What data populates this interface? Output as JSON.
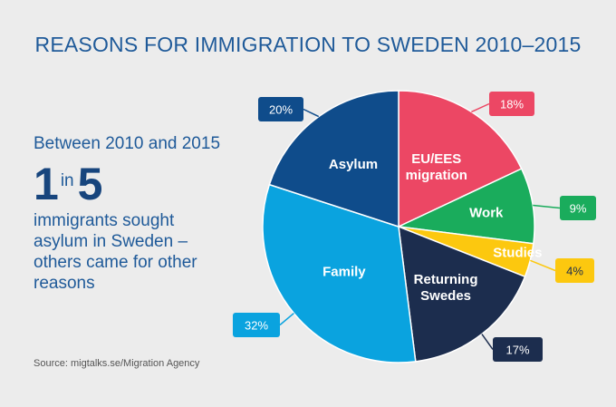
{
  "title": "REASONS FOR IMMIGRATION TO SWEDEN 2010–2015",
  "intro": "Between 2010 and 2015",
  "stat": {
    "num1": "1",
    "word": "in",
    "num2": "5"
  },
  "description": "immigrants sought asylum in Sweden – others came for other reasons",
  "source": "Source: migtalks.se/Migration Agency",
  "chart_data": {
    "type": "pie",
    "start_angle_deg": 0,
    "direction": "clockwise",
    "slices": [
      {
        "label": "EU/EES migration",
        "lines": [
          "EU/EES",
          "migration"
        ],
        "value": 18,
        "value_label": "18%",
        "color": "#ec4764"
      },
      {
        "label": "Work",
        "lines": [
          "Work"
        ],
        "value": 9,
        "value_label": "9%",
        "color": "#1aac5c"
      },
      {
        "label": "Studies",
        "lines": [
          "Studies"
        ],
        "value": 4,
        "value_label": "4%",
        "color": "#fcc80f"
      },
      {
        "label": "Returning Swedes",
        "lines": [
          "Returning",
          "Swedes"
        ],
        "value": 17,
        "value_label": "17%",
        "color": "#1c2d4e"
      },
      {
        "label": "Family",
        "lines": [
          "Family"
        ],
        "value": 32,
        "value_label": "32%",
        "color": "#0aa3df"
      },
      {
        "label": "Asylum",
        "lines": [
          "Asylum"
        ],
        "value": 20,
        "value_label": "20%",
        "color": "#0f4c8b"
      }
    ]
  }
}
